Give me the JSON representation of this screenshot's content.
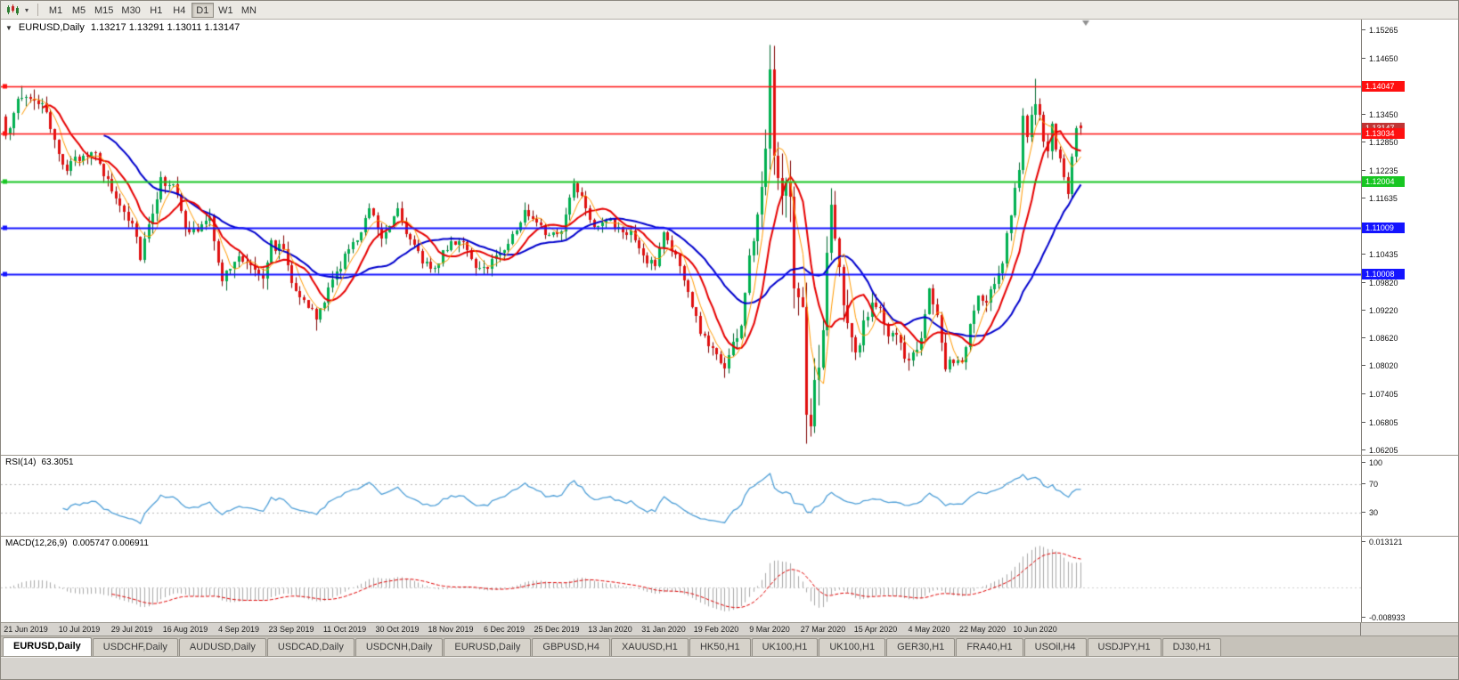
{
  "toolbar": {
    "chart_type_icon": "candlestick-chart-icon",
    "dropdown_glyph": "▾",
    "timeframes": [
      {
        "label": "M1",
        "active": false
      },
      {
        "label": "M5",
        "active": false
      },
      {
        "label": "M15",
        "active": false
      },
      {
        "label": "M30",
        "active": false
      },
      {
        "label": "H1",
        "active": false
      },
      {
        "label": "H4",
        "active": false
      },
      {
        "label": "D1",
        "active": true
      },
      {
        "label": "W1",
        "active": false
      },
      {
        "label": "MN",
        "active": false
      }
    ]
  },
  "chart": {
    "collapse_glyph": "▼",
    "symbol": "EURUSD,Daily",
    "ohlc": "1.13217 1.13291 1.13011 1.13147",
    "axis_labels": [
      "1.15265",
      "1.14650",
      "1.13450",
      "1.12850",
      "1.12235",
      "1.11635",
      "1.10435",
      "1.09820",
      "1.09220",
      "1.08620",
      "1.08020",
      "1.07405",
      "1.06805",
      "1.06205"
    ],
    "levels": [
      {
        "label": "1.14047",
        "value": 1.14047,
        "color": "#ff1010",
        "width": 1.5
      },
      {
        "label": "1.13034",
        "value": 1.13034,
        "color": "#ff1010",
        "width": 1.5
      },
      {
        "label": "1.12004",
        "value": 1.12004,
        "color": "#17c622",
        "width": 2
      },
      {
        "label": "1.11009",
        "value": 1.11009,
        "color": "#1414ff",
        "width": 2
      },
      {
        "label": "1.10008",
        "value": 1.10008,
        "color": "#1414ff",
        "width": 2
      }
    ],
    "current_price": {
      "label": "1.13147",
      "value": 1.13147,
      "color": "#c03434"
    },
    "colors": {
      "up": "#00b050",
      "up_border": "#00662e",
      "down": "#e01010",
      "down_border": "#7e0000",
      "ma_fast": "#ff9900",
      "ma_mid": "#e60000",
      "ma_slow": "#0000cc"
    },
    "ma_periods": {
      "fast": 5,
      "mid": 10,
      "slow": 25
    }
  },
  "chart_data": {
    "type": "candlestick",
    "symbol": "EURUSD",
    "timeframe": "Daily",
    "candles_count": 264,
    "x_tick_labels": [
      "21 Jun 2019",
      "10 Jul 2019",
      "29 Jul 2019",
      "16 Aug 2019",
      "4 Sep 2019",
      "23 Sep 2019",
      "11 Oct 2019",
      "30 Oct 2019",
      "18 Nov 2019",
      "6 Dec 2019",
      "25 Dec 2019",
      "13 Jan 2020",
      "31 Jan 2020",
      "19 Feb 2020",
      "9 Mar 2020",
      "27 Mar 2020",
      "15 Apr 2020",
      "4 May 2020",
      "22 May 2020",
      "10 Jun 2020"
    ],
    "x_first_tick_index": 5,
    "x_tick_step": 13,
    "price_anchors": [
      [
        0,
        1.129,
        0.0045
      ],
      [
        2,
        1.136,
        0.0045
      ],
      [
        5,
        1.1385,
        0.0042
      ],
      [
        9,
        1.1368,
        0.004
      ],
      [
        12,
        1.128,
        0.004
      ],
      [
        15,
        1.123,
        0.0038
      ],
      [
        18,
        1.125,
        0.0038
      ],
      [
        21,
        1.127,
        0.0038
      ],
      [
        24,
        1.1215,
        0.0038
      ],
      [
        28,
        1.115,
        0.0038
      ],
      [
        31,
        1.1115,
        0.0042
      ],
      [
        33,
        1.1045,
        0.005
      ],
      [
        35,
        1.111,
        0.0048
      ],
      [
        38,
        1.12,
        0.0042
      ],
      [
        41,
        1.12,
        0.004
      ],
      [
        44,
        1.1095,
        0.004
      ],
      [
        47,
        1.1095,
        0.0038
      ],
      [
        50,
        1.112,
        0.0038
      ],
      [
        53,
        1.099,
        0.004
      ],
      [
        57,
        1.1035,
        0.0038
      ],
      [
        60,
        1.1025,
        0.0038
      ],
      [
        63,
        1.1,
        0.0045
      ],
      [
        65,
        1.1065,
        0.005
      ],
      [
        68,
        1.1055,
        0.004
      ],
      [
        70,
        1.099,
        0.0038
      ],
      [
        73,
        1.094,
        0.0038
      ],
      [
        76,
        1.0905,
        0.0042
      ],
      [
        79,
        1.0965,
        0.0038
      ],
      [
        83,
        1.104,
        0.0038
      ],
      [
        86,
        1.1075,
        0.0036
      ],
      [
        89,
        1.115,
        0.0036
      ],
      [
        92,
        1.108,
        0.0036
      ],
      [
        96,
        1.1145,
        0.0036
      ],
      [
        99,
        1.107,
        0.0036
      ],
      [
        102,
        1.103,
        0.0034
      ],
      [
        105,
        1.1015,
        0.0034
      ],
      [
        109,
        1.107,
        0.0034
      ],
      [
        112,
        1.1075,
        0.0032
      ],
      [
        115,
        1.1005,
        0.0032
      ],
      [
        118,
        1.102,
        0.0032
      ],
      [
        122,
        1.106,
        0.0034
      ],
      [
        125,
        1.1095,
        0.0034
      ],
      [
        127,
        1.1135,
        0.0034
      ],
      [
        130,
        1.112,
        0.0032
      ],
      [
        133,
        1.108,
        0.003
      ],
      [
        136,
        1.1095,
        0.003
      ],
      [
        139,
        1.12,
        0.0034
      ],
      [
        141,
        1.117,
        0.0032
      ],
      [
        144,
        1.1105,
        0.0032
      ],
      [
        147,
        1.112,
        0.003
      ],
      [
        150,
        1.1095,
        0.003
      ],
      [
        153,
        1.109,
        0.003
      ],
      [
        156,
        1.1035,
        0.003
      ],
      [
        159,
        1.102,
        0.003
      ],
      [
        161,
        1.109,
        0.0032
      ],
      [
        164,
        1.104,
        0.0032
      ],
      [
        167,
        1.096,
        0.0032
      ],
      [
        170,
        1.0875,
        0.0032
      ],
      [
        173,
        1.084,
        0.0032
      ],
      [
        176,
        1.08,
        0.0036
      ],
      [
        178,
        1.085,
        0.004
      ],
      [
        180,
        1.089,
        0.0048
      ],
      [
        182,
        1.103,
        0.0062
      ],
      [
        184,
        1.1135,
        0.0072
      ],
      [
        186,
        1.1285,
        0.0085
      ],
      [
        187,
        1.1445,
        0.0125
      ],
      [
        188,
        1.128,
        0.011
      ],
      [
        190,
        1.1185,
        0.011
      ],
      [
        192,
        1.118,
        0.0115
      ],
      [
        193,
        1.0995,
        0.0125
      ],
      [
        195,
        1.0915,
        0.013
      ],
      [
        196,
        1.0692,
        0.014
      ],
      [
        197,
        1.07,
        0.013
      ],
      [
        199,
        1.079,
        0.0115
      ],
      [
        201,
        1.103,
        0.0105
      ],
      [
        202,
        1.114,
        0.01
      ],
      [
        204,
        1.1,
        0.0085
      ],
      [
        206,
        1.088,
        0.0075
      ],
      [
        208,
        1.083,
        0.0065
      ],
      [
        210,
        1.0895,
        0.006
      ],
      [
        212,
        1.0935,
        0.0055
      ],
      [
        214,
        1.092,
        0.005
      ],
      [
        216,
        1.087,
        0.0048
      ],
      [
        218,
        1.086,
        0.0046
      ],
      [
        220,
        1.082,
        0.0046
      ],
      [
        222,
        1.083,
        0.0044
      ],
      [
        224,
        1.087,
        0.0044
      ],
      [
        226,
        1.096,
        0.005
      ],
      [
        228,
        1.09,
        0.0044
      ],
      [
        230,
        1.08,
        0.0042
      ],
      [
        232,
        1.0815,
        0.004
      ],
      [
        234,
        1.0805,
        0.004
      ],
      [
        236,
        1.089,
        0.004
      ],
      [
        238,
        1.095,
        0.0038
      ],
      [
        240,
        1.0935,
        0.0036
      ],
      [
        242,
        1.0985,
        0.0038
      ],
      [
        244,
        1.103,
        0.004
      ],
      [
        246,
        1.1135,
        0.0042
      ],
      [
        248,
        1.1235,
        0.0044
      ],
      [
        249,
        1.133,
        0.0048
      ],
      [
        250,
        1.129,
        0.0044
      ],
      [
        252,
        1.1375,
        0.0048
      ],
      [
        254,
        1.1298,
        0.0044
      ],
      [
        255,
        1.1256,
        0.004
      ],
      [
        256,
        1.1323,
        0.004
      ],
      [
        257,
        1.1263,
        0.0038
      ],
      [
        258,
        1.1243,
        0.0036
      ],
      [
        259,
        1.1206,
        0.0036
      ],
      [
        260,
        1.1177,
        0.0036
      ],
      [
        261,
        1.1261,
        0.0038
      ],
      [
        262,
        1.1307,
        0.0038
      ],
      [
        263,
        1.1315,
        0.003
      ]
    ],
    "wick_overrides": [
      {
        "i": 4,
        "h": 1.1408
      },
      {
        "i": 76,
        "l": 1.0879
      },
      {
        "i": 176,
        "l": 1.0778
      },
      {
        "i": 187,
        "h": 1.1495
      },
      {
        "i": 196,
        "l": 1.0636
      },
      {
        "i": 252,
        "h": 1.1422
      }
    ],
    "last_candle_ohlc": {
      "o": 1.13217,
      "h": 1.13291,
      "l": 1.13011,
      "c": 1.13147
    }
  },
  "rsi": {
    "name": "RSI(14)",
    "value": "63.3051",
    "period": 14,
    "axis_labels": [
      "100",
      "70",
      "30"
    ],
    "line_color": "#4f9fd7"
  },
  "macd": {
    "name": "MACD(12,26,9)",
    "values": "0.005747 0.006911",
    "fast": 12,
    "slow": 26,
    "signal": 9,
    "axis_max": "0.013121",
    "axis_min": "-0.008933",
    "hist_color": "#a8a8a8",
    "signal_color": "#e00000"
  },
  "tabs": [
    {
      "label": "EURUSD,Daily",
      "active": true
    },
    {
      "label": "USDCHF,Daily",
      "active": false
    },
    {
      "label": "AUDUSD,Daily",
      "active": false
    },
    {
      "label": "USDCAD,Daily",
      "active": false
    },
    {
      "label": "USDCNH,Daily",
      "active": false
    },
    {
      "label": "EURUSD,Daily",
      "active": false
    },
    {
      "label": "GBPUSD,H4",
      "active": false
    },
    {
      "label": "XAUUSD,H1",
      "active": false
    },
    {
      "label": "HK50,H1",
      "active": false
    },
    {
      "label": "UK100,H1",
      "active": false
    },
    {
      "label": "UK100,H1",
      "active": false
    },
    {
      "label": "GER30,H1",
      "active": false
    },
    {
      "label": "FRA40,H1",
      "active": false
    },
    {
      "label": "USOil,H4",
      "active": false
    },
    {
      "label": "USDJPY,H1",
      "active": false
    },
    {
      "label": "DJ30,H1",
      "active": false
    }
  ]
}
